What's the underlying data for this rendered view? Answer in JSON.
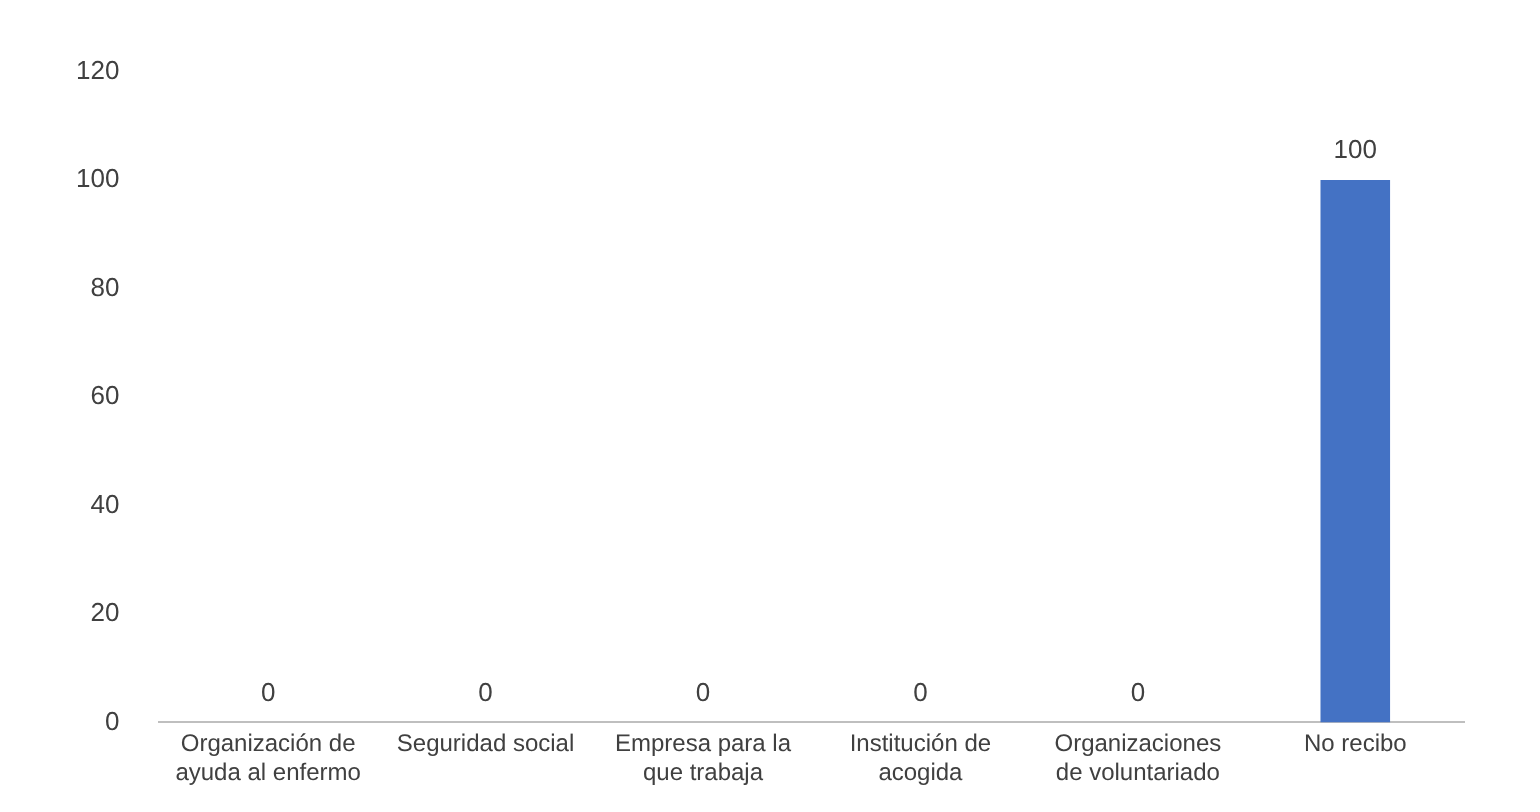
{
  "chart_data": {
    "type": "bar",
    "categories": [
      "Organización de ayuda al enfermo",
      "Seguridad social",
      "Empresa para la que trabaja",
      "Institución de acogida",
      "Organizaciones de voluntariado",
      "No recibo"
    ],
    "values": [
      0,
      0,
      0,
      0,
      0,
      100
    ],
    "color": "#4472c4",
    "ylim": [
      0,
      120
    ],
    "yticks": [
      0,
      20,
      40,
      60,
      80,
      100,
      120
    ],
    "grid": false,
    "legend": false,
    "data_labels": true
  }
}
